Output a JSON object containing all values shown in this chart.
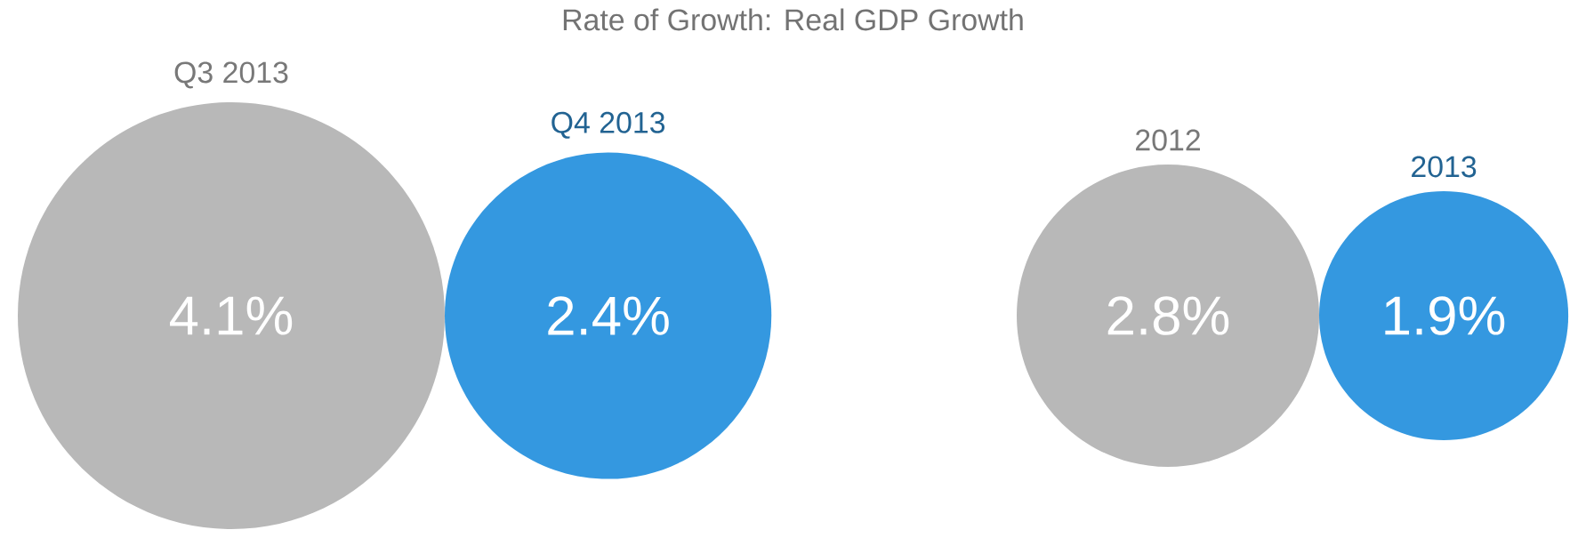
{
  "chart_data": [
    {
      "type": "other",
      "title": "Rate of Growth: Real GDP Growth",
      "categories": [
        "Q3 2013",
        "Q4 2013"
      ],
      "values": [
        4.1,
        2.4
      ],
      "value_labels": [
        "4.1%",
        "2.4%"
      ],
      "colors": [
        "#b8b8b8",
        "#3498e0"
      ]
    },
    {
      "type": "other",
      "categories": [
        "2012",
        "2013"
      ],
      "values": [
        2.8,
        1.9
      ],
      "value_labels": [
        "2.8%",
        "1.9%"
      ],
      "colors": [
        "#b8b8b8",
        "#3498e0"
      ]
    }
  ]
}
